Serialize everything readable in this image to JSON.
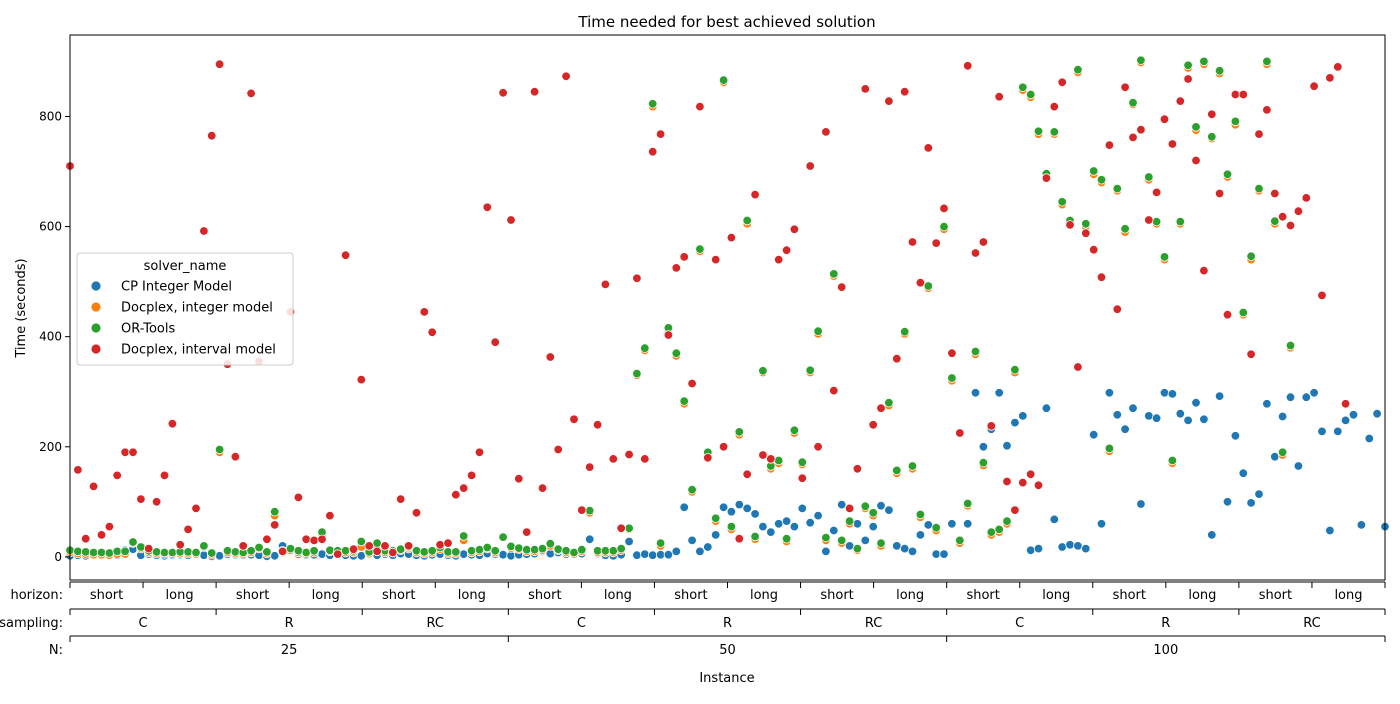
{
  "chart_data": {
    "type": "scatter",
    "title": "Time needed for best achieved solution",
    "xlabel": "Instance",
    "ylabel": "Time (seconds)",
    "ylim": [
      -42,
      948
    ],
    "yticks": [
      0,
      200,
      400,
      600,
      800
    ],
    "grid": false,
    "legend": {
      "title": "solver_name",
      "placement": "center-left"
    },
    "group_rows": [
      {
        "label": "horizon:",
        "groups": [
          "short",
          "long",
          "short",
          "long",
          "short",
          "long",
          "short",
          "long",
          "short",
          "long",
          "short",
          "long",
          "short",
          "long",
          "short",
          "long",
          "short",
          "long"
        ]
      },
      {
        "label": "sampling:",
        "groups": [
          "C",
          "R",
          "RC",
          "C",
          "R",
          "RC",
          "C",
          "R",
          "RC"
        ]
      },
      {
        "label": "N:",
        "groups": [
          "25",
          "50",
          "100"
        ]
      }
    ],
    "series": [
      {
        "name": "CP Integer Model",
        "color": "#1f77b4",
        "y": [
          2,
          3,
          2,
          3,
          3,
          2,
          3,
          12,
          14,
          3,
          5,
          3,
          2,
          3,
          4,
          3,
          5,
          3,
          1,
          2,
          5,
          4,
          3,
          4,
          3,
          1,
          2,
          20,
          15,
          5,
          3,
          4,
          5,
          3,
          4,
          3,
          2,
          2,
          7,
          3,
          5,
          3,
          6,
          5,
          3,
          2,
          4,
          5,
          3,
          2,
          5,
          4,
          3,
          6,
          5,
          4,
          2,
          4,
          5,
          6,
          10,
          6,
          8,
          5,
          5,
          6,
          32,
          6,
          3,
          2,
          4,
          28,
          3,
          5,
          3,
          4,
          4,
          10,
          90,
          30,
          10,
          18,
          40,
          90,
          82,
          95,
          88,
          78,
          55,
          45,
          60,
          65,
          55,
          88,
          62,
          75,
          10,
          48,
          95,
          20,
          60,
          30,
          55,
          93,
          85,
          20,
          15,
          10,
          40,
          58,
          5,
          5,
          60,
          27,
          60,
          298,
          200,
          232,
          298,
          202,
          244,
          256,
          12,
          15,
          270,
          68,
          18,
          22,
          20,
          15,
          222,
          60,
          298,
          258,
          232,
          270,
          96,
          256,
          252,
          298,
          296,
          260,
          248,
          280,
          250,
          40,
          292,
          100,
          220,
          152,
          98,
          114,
          278,
          182,
          255,
          290,
          165,
          290,
          298,
          228,
          48,
          228,
          248,
          258,
          58,
          215,
          260,
          55
        ]
      },
      {
        "name": "Docplex, integer model",
        "color": "#ff7f0e",
        "y": [
          8,
          6,
          5,
          4,
          4,
          3,
          5,
          5,
          25,
          15,
          8,
          6,
          5,
          5,
          6,
          6,
          5,
          18,
          4,
          190,
          8,
          6,
          5,
          8,
          15,
          6,
          75,
          8,
          12,
          8,
          5,
          8,
          40,
          10,
          8,
          8,
          8,
          18,
          6,
          22,
          8,
          8,
          12,
          15,
          8,
          6,
          8,
          14,
          6,
          6,
          30,
          8,
          10,
          15,
          8,
          35,
          16,
          14,
          10,
          10,
          12,
          20,
          12,
          8,
          5,
          10,
          80,
          8,
          8,
          8,
          12,
          50,
          330,
          375,
          818,
          20,
          412,
          365,
          278,
          118,
          555,
          185,
          65,
          862,
          50,
          222,
          605,
          32,
          335,
          160,
          170,
          28,
          225,
          168,
          335,
          405,
          30,
          510,
          25,
          60,
          12,
          88,
          75,
          20,
          275,
          152,
          405,
          160,
          72,
          488,
          48,
          595,
          320,
          25,
          93,
          368,
          166,
          40,
          45,
          60,
          335,
          848,
          835,
          768,
          690,
          768,
          640,
          605,
          880,
          600,
          695,
          680,
          192,
          665,
          590,
          822,
          898,
          685,
          605,
          540,
          170,
          605,
          888,
          775,
          895,
          760,
          878,
          690,
          785,
          440,
          540,
          665,
          895,
          605,
          185,
          380
        ]
      },
      {
        "name": "OR-Tools",
        "color": "#2ca02c",
        "y": [
          12,
          10,
          9,
          8,
          8,
          7,
          10,
          10,
          27,
          18,
          11,
          9,
          8,
          8,
          9,
          9,
          8,
          20,
          7,
          195,
          11,
          9,
          8,
          11,
          17,
          9,
          82,
          11,
          15,
          11,
          8,
          11,
          45,
          12,
          11,
          11,
          11,
          28,
          9,
          25,
          11,
          11,
          14,
          18,
          11,
          9,
          11,
          17,
          9,
          9,
          38,
          11,
          13,
          17,
          11,
          36,
          19,
          16,
          13,
          13,
          15,
          24,
          14,
          11,
          8,
          13,
          84,
          11,
          11,
          11,
          15,
          52,
          333,
          379,
          823,
          25,
          416,
          370,
          283,
          122,
          559,
          190,
          70,
          866,
          55,
          227,
          611,
          37,
          338,
          165,
          175,
          33,
          230,
          172,
          339,
          410,
          35,
          514,
          30,
          65,
          15,
          92,
          80,
          25,
          280,
          157,
          409,
          165,
          77,
          492,
          53,
          600,
          325,
          30,
          97,
          373,
          171,
          45,
          50,
          65,
          340,
          853,
          840,
          773,
          696,
          772,
          645,
          611,
          885,
          605,
          701,
          685,
          197,
          669,
          596,
          825,
          902,
          690,
          609,
          545,
          175,
          609,
          893,
          781,
          900,
          763,
          883,
          695,
          791,
          444,
          546,
          669,
          900,
          610,
          190,
          384
        ]
      },
      {
        "name": "Docplex, interval model",
        "color": "#d62728",
        "y": [
          710,
          158,
          33,
          128,
          40,
          55,
          148,
          190,
          190,
          105,
          15,
          100,
          148,
          242,
          22,
          50,
          88,
          592,
          765,
          895,
          350,
          182,
          20,
          842,
          355,
          32,
          58,
          10,
          445,
          108,
          32,
          30,
          32,
          75,
          5,
          548,
          14,
          322,
          20,
          10,
          20,
          8,
          105,
          20,
          80,
          445,
          408,
          22,
          25,
          113,
          125,
          148,
          190,
          635,
          390,
          843,
          612,
          142,
          45,
          845,
          125,
          363,
          195,
          873,
          250,
          85,
          163,
          240,
          495,
          178,
          52,
          186,
          506,
          178,
          736,
          768,
          403,
          525,
          545,
          315,
          818,
          180,
          540,
          200,
          580,
          33,
          150,
          658,
          185,
          178,
          540,
          557,
          595,
          143,
          710,
          200,
          772,
          302,
          490,
          88,
          160,
          850,
          240,
          270,
          828,
          360,
          845,
          572,
          498,
          743,
          570,
          633,
          370,
          225,
          892,
          552,
          572,
          238,
          836,
          137,
          85,
          135,
          150,
          130,
          688,
          818,
          862,
          603,
          345,
          588,
          558,
          508,
          748,
          450,
          853,
          762,
          776,
          612,
          662,
          795,
          750,
          828,
          868,
          720,
          520,
          804,
          660,
          440,
          840,
          840,
          368,
          768,
          812,
          660,
          618,
          602,
          628,
          652,
          855,
          475,
          870,
          890,
          278
        ]
      }
    ]
  }
}
